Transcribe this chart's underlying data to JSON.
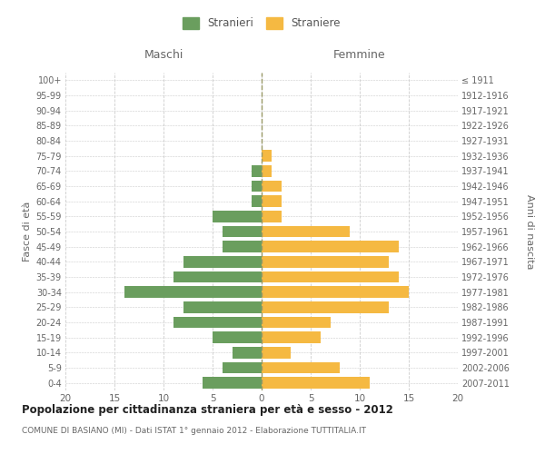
{
  "age_groups": [
    "100+",
    "95-99",
    "90-94",
    "85-89",
    "80-84",
    "75-79",
    "70-74",
    "65-69",
    "60-64",
    "55-59",
    "50-54",
    "45-49",
    "40-44",
    "35-39",
    "30-34",
    "25-29",
    "20-24",
    "15-19",
    "10-14",
    "5-9",
    "0-4"
  ],
  "birth_years": [
    "≤ 1911",
    "1912-1916",
    "1917-1921",
    "1922-1926",
    "1927-1931",
    "1932-1936",
    "1937-1941",
    "1942-1946",
    "1947-1951",
    "1952-1956",
    "1957-1961",
    "1962-1966",
    "1967-1971",
    "1972-1976",
    "1977-1981",
    "1982-1986",
    "1987-1991",
    "1992-1996",
    "1997-2001",
    "2002-2006",
    "2007-2011"
  ],
  "males": [
    0,
    0,
    0,
    0,
    0,
    0,
    1,
    1,
    1,
    5,
    4,
    4,
    8,
    9,
    14,
    8,
    9,
    5,
    3,
    4,
    6
  ],
  "females": [
    0,
    0,
    0,
    0,
    0,
    1,
    1,
    2,
    2,
    2,
    9,
    14,
    13,
    14,
    15,
    13,
    7,
    6,
    3,
    8,
    11
  ],
  "male_color": "#6a9e5e",
  "female_color": "#f5b942",
  "background_color": "#ffffff",
  "grid_color": "#cccccc",
  "title": "Popolazione per cittadinanza straniera per età e sesso - 2012",
  "subtitle": "COMUNE DI BASIANO (MI) - Dati ISTAT 1° gennaio 2012 - Elaborazione TUTTITALIA.IT",
  "xlabel_left": "Maschi",
  "xlabel_right": "Femmine",
  "ylabel_left": "Fasce di età",
  "ylabel_right": "Anni di nascita",
  "xlim": 20,
  "legend_male": "Stranieri",
  "legend_female": "Straniere",
  "centerline_color": "#999966",
  "centerline_style": "--"
}
